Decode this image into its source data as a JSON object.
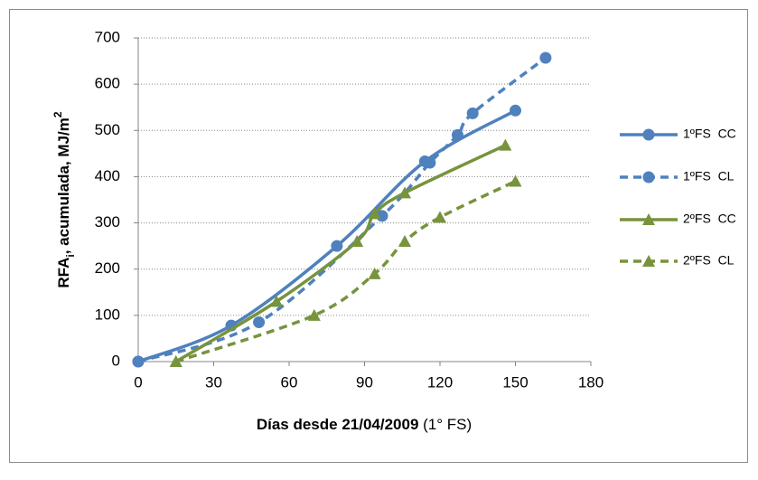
{
  "chart_data": {
    "type": "line",
    "ylabel": {
      "main": "RFA",
      "sub": "i",
      "rest": ", acumulada, MJ/m",
      "sup": "2"
    },
    "xlabel": {
      "bold": "Días desde 21/04/2009",
      "normal": "(1° FS)"
    },
    "xlim": [
      0,
      180
    ],
    "xticks": [
      0,
      30,
      60,
      90,
      120,
      150,
      180
    ],
    "ylim": [
      0,
      700
    ],
    "yticks": [
      0,
      100,
      200,
      300,
      400,
      500,
      600,
      700
    ],
    "grid": true,
    "legend": "right",
    "smooth": true,
    "series": [
      {
        "name": "1ºFS  CC",
        "color": "#4f81bd",
        "dash": false,
        "marker": "circle",
        "x": [
          0,
          37,
          79,
          114,
          150
        ],
        "values": [
          0,
          78,
          250,
          433,
          543
        ]
      },
      {
        "name": "1ºFS  CL",
        "color": "#4f81bd",
        "dash": true,
        "marker": "circle",
        "x": [
          0,
          48,
          97,
          116,
          127,
          133,
          162
        ],
        "values": [
          0,
          85,
          315,
          430,
          490,
          537,
          657
        ]
      },
      {
        "name": "2ºFS  CC",
        "color": "#77933c",
        "dash": false,
        "marker": "triangle",
        "x": [
          15,
          55,
          87,
          94,
          106,
          146
        ],
        "values": [
          0,
          130,
          260,
          320,
          365,
          468
        ]
      },
      {
        "name": "2ºFS  CL",
        "color": "#77933c",
        "dash": true,
        "marker": "triangle",
        "x": [
          15,
          70,
          94,
          106,
          120,
          150
        ],
        "values": [
          0,
          100,
          190,
          260,
          312,
          390
        ]
      }
    ]
  }
}
